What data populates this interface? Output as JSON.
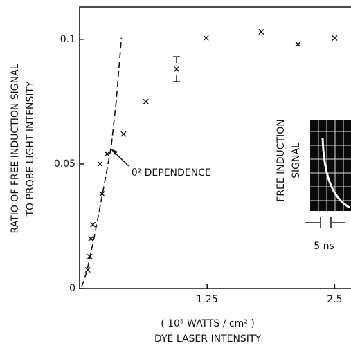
{
  "chart_data": {
    "type": "scatter",
    "y_label_lines": [
      "RATIO OF FREE INDUCTION SIGNAL",
      "TO PROBE LIGHT INTENSITY"
    ],
    "x_label_lines": [
      "( 10⁵ WATTS / cm² )",
      "DYE LASER INTENSITY"
    ],
    "xlim": [
      0,
      2.66
    ],
    "ylim": [
      0,
      0.113
    ],
    "xticks": [
      1.25,
      2.5
    ],
    "yticks": [
      0,
      0.05,
      0.1
    ],
    "series": [
      {
        "marker": "x",
        "color": "#111111",
        "x": [
          0.08,
          0.1,
          0.11,
          0.13,
          0.2,
          0.22,
          0.27,
          0.43,
          0.65,
          0.95,
          1.24,
          1.78,
          2.14,
          2.5
        ],
        "values": [
          0.0075,
          0.0128,
          0.02,
          0.0256,
          0.05,
          0.038,
          0.054,
          0.062,
          0.075,
          0.088,
          0.1005,
          0.103,
          0.098,
          0.1005
        ],
        "errors": [
          null,
          null,
          null,
          null,
          null,
          null,
          null,
          null,
          null,
          0.005,
          null,
          null,
          null,
          null
        ]
      },
      {
        "style": "dashed",
        "color": "#111111",
        "x": [
          0.02,
          0.07,
          0.14,
          0.22,
          0.31,
          0.36,
          0.41
        ],
        "values": [
          0.0006,
          0.0067,
          0.02,
          0.037,
          0.057,
          0.0756,
          0.1006
        ]
      }
    ],
    "annotations": [
      {
        "text": "θ² DEPENDENCE"
      },
      {
        "text": "FREE INDUCTION"
      },
      {
        "text": "SIGNAL"
      },
      {
        "text": "5 ns"
      }
    ]
  }
}
